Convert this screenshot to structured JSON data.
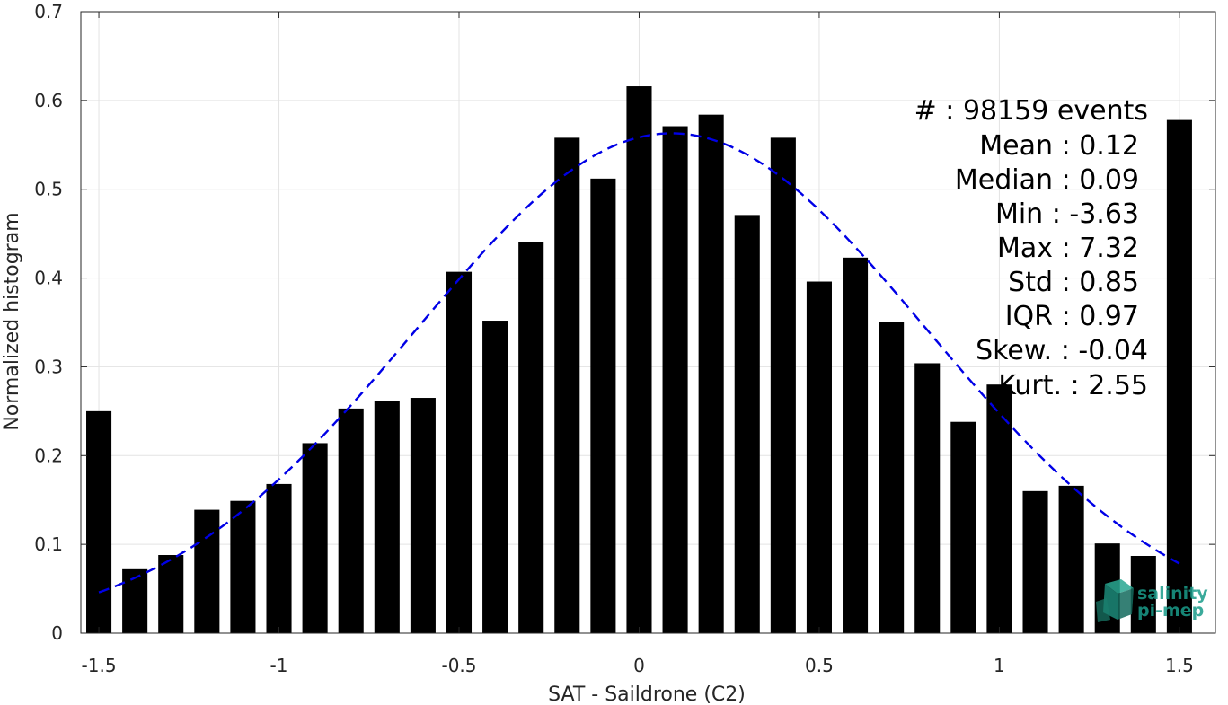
{
  "chart_data": {
    "type": "bar",
    "xlabel": "SAT - Saildrone (C2)",
    "ylabel": "Normalized histogram",
    "xlim": [
      -1.55,
      1.6
    ],
    "ylim": [
      0,
      0.7
    ],
    "grid": true,
    "x_ticks": [
      "-1.5",
      "-1",
      "-0.5",
      "0",
      "0.5",
      "1",
      "1.5"
    ],
    "x_tick_values": [
      -1.5,
      -1,
      -0.5,
      0,
      0.5,
      1,
      1.5
    ],
    "y_ticks": [
      "0",
      "0.1",
      "0.2",
      "0.3",
      "0.4",
      "0.5",
      "0.6",
      "0.7"
    ],
    "y_tick_values": [
      0,
      0.1,
      0.2,
      0.3,
      0.4,
      0.5,
      0.6,
      0.7
    ],
    "bar_color": "#000000",
    "bar_width": 0.07,
    "bins": [
      {
        "x": -1.5,
        "value": 0.25
      },
      {
        "x": -1.4,
        "value": 0.072
      },
      {
        "x": -1.3,
        "value": 0.088
      },
      {
        "x": -1.2,
        "value": 0.139
      },
      {
        "x": -1.1,
        "value": 0.149
      },
      {
        "x": -1.0,
        "value": 0.168
      },
      {
        "x": -0.9,
        "value": 0.214
      },
      {
        "x": -0.8,
        "value": 0.253
      },
      {
        "x": -0.7,
        "value": 0.262
      },
      {
        "x": -0.6,
        "value": 0.265
      },
      {
        "x": -0.5,
        "value": 0.407
      },
      {
        "x": -0.4,
        "value": 0.352
      },
      {
        "x": -0.3,
        "value": 0.441
      },
      {
        "x": -0.2,
        "value": 0.558
      },
      {
        "x": -0.1,
        "value": 0.512
      },
      {
        "x": 0.0,
        "value": 0.616
      },
      {
        "x": 0.1,
        "value": 0.571
      },
      {
        "x": 0.2,
        "value": 0.584
      },
      {
        "x": 0.3,
        "value": 0.471
      },
      {
        "x": 0.4,
        "value": 0.558
      },
      {
        "x": 0.5,
        "value": 0.396
      },
      {
        "x": 0.6,
        "value": 0.423
      },
      {
        "x": 0.7,
        "value": 0.351
      },
      {
        "x": 0.8,
        "value": 0.304
      },
      {
        "x": 0.9,
        "value": 0.238
      },
      {
        "x": 1.0,
        "value": 0.28
      },
      {
        "x": 1.1,
        "value": 0.16
      },
      {
        "x": 1.2,
        "value": 0.166
      },
      {
        "x": 1.3,
        "value": 0.101
      },
      {
        "x": 1.4,
        "value": 0.087
      },
      {
        "x": 1.5,
        "value": 0.578
      }
    ],
    "fit_curve": {
      "type": "gaussian",
      "style": "dashed",
      "color": "#0000e6",
      "mean": 0.09,
      "std": 0.71,
      "peak": 0.563,
      "x_range": [
        -1.5,
        1.5
      ]
    }
  },
  "stats": {
    "count": "#  : 98159 events",
    "mean": "Mean : 0.12",
    "median": "Median : 0.09",
    "min": "Min : -3.63",
    "max": "Max : 7.32",
    "std": "Std : 0.85",
    "iqr": "IQR : 0.97",
    "skew": "Skew. : -0.04",
    "kurt": "Kurt. : 2.55"
  },
  "logo": {
    "line1": "salinity",
    "line2": "pi-mep",
    "color": "#1a9c8a"
  }
}
